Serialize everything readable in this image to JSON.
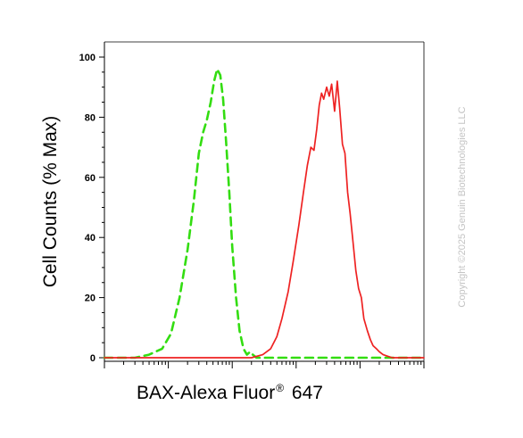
{
  "chart_data": {
    "type": "line",
    "title": "",
    "ylabel": "Cell Counts (% Max)",
    "xlabel": {
      "text": "BAX-Alexa Fluor",
      "superscript": "®",
      "suffix": " 647"
    },
    "ylim": [
      0,
      100
    ],
    "yticks": [
      "0",
      "20",
      "40",
      "60",
      "80",
      "100"
    ],
    "xscale": "log",
    "xlim": [
      0.1,
      10000
    ],
    "xtick_labels_shown": false,
    "grid": false,
    "legend": "none",
    "watermark": "Copyright ©2025 Genuin Biotechnologies LLC",
    "series": [
      {
        "color": "#33dd11",
        "style": "dashed",
        "x": [
          0.1,
          0.3,
          0.5,
          0.8,
          1.1,
          1.5,
          2.0,
          2.5,
          3.0,
          3.5,
          4.0,
          4.6,
          5.2,
          5.8,
          6.5,
          7.2,
          8.0,
          9.0,
          10.0,
          11.5,
          13.0,
          15.0,
          17.0,
          19.0,
          21.0,
          24.0,
          28.0,
          35.0,
          50.0,
          100.0,
          1000.0,
          10000.0
        ],
        "y": [
          0,
          0,
          1,
          3,
          8,
          20,
          36,
          52,
          68,
          75,
          79,
          85,
          92,
          96,
          94,
          86,
          72,
          55,
          37,
          20,
          9,
          3,
          1,
          2,
          1,
          0,
          0,
          0,
          0,
          0,
          0,
          0
        ]
      },
      {
        "color": "#ee2222",
        "style": "solid",
        "x": [
          0.1,
          10.0,
          20.0,
          30.0,
          40.0,
          50.0,
          60.0,
          75.0,
          90.0,
          110.0,
          130.0,
          150.0,
          170.0,
          190.0,
          210.0,
          230.0,
          250.0,
          270.0,
          300.0,
          330.0,
          360.0,
          400.0,
          440.0,
          480.0,
          530.0,
          580.0,
          640.0,
          700.0,
          780.0,
          860.0,
          950.0,
          1050.0,
          1150.0,
          1300.0,
          1450.0,
          1600.0,
          1800.0,
          2000.0,
          2300.0,
          2700.0,
          3200.0,
          4000.0,
          5000.0,
          10000.0
        ],
        "y": [
          0,
          0,
          0,
          1,
          3,
          7,
          13,
          22,
          32,
          44,
          55,
          64,
          70,
          69,
          76,
          84,
          88,
          86,
          90,
          87,
          91,
          82,
          92,
          83,
          71,
          68,
          55,
          48,
          38,
          29,
          23,
          20,
          13,
          9,
          6,
          4,
          3,
          2,
          1,
          0.5,
          0,
          0,
          0,
          0
        ]
      }
    ]
  }
}
